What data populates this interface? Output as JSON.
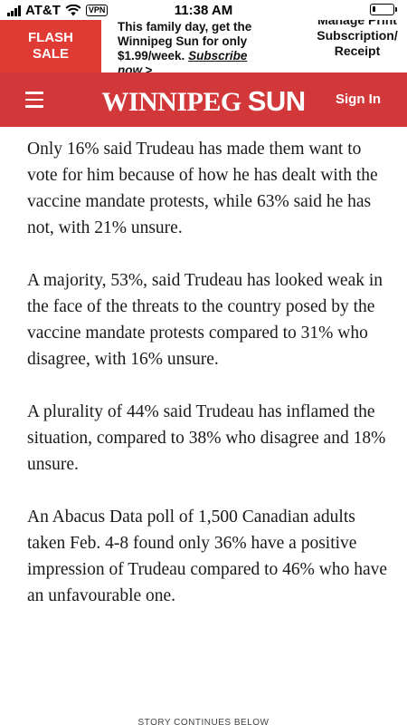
{
  "status_bar": {
    "carrier": "AT&T",
    "vpn": "VPN",
    "time": "11:38 AM",
    "battery_level": 0.15
  },
  "promo": {
    "flash_line1": "FLASH",
    "flash_line2": "SALE",
    "text": "This family day, get the Winnipeg Sun for only $1.99/week.",
    "link": "Subscribe now.>",
    "manage_text": "Manage Print Subscription/ Receipt"
  },
  "header": {
    "logo_part1": "WINNIPEG",
    "logo_part2": "SUN",
    "sign_in": "Sign In"
  },
  "article": {
    "paragraphs": [
      "Only 16% said Trudeau has made them want to vote for him because of how he has dealt with the vaccine mandate protests, while 63% said he has not, with 21% unsure.",
      "A majority, 53%, said Trudeau has looked weak in the face of the threats to the country posed by the vaccine mandate protests compared to 31% who disagree, with 16% unsure.",
      "A plurality of 44% said Trudeau has inflamed the situation, compared to 38% who disagree and 18% unsure.",
      "An Abacus Data poll of 1,500 Canadian adults taken Feb. 4-8 found only 36% have a positive impression of Trudeau compared to 46% who have an unfavourable one."
    ],
    "story_continues": "STORY CONTINUES BELOW"
  },
  "colors": {
    "header_red": "#d2373a",
    "flash_red": "#e03a35"
  }
}
